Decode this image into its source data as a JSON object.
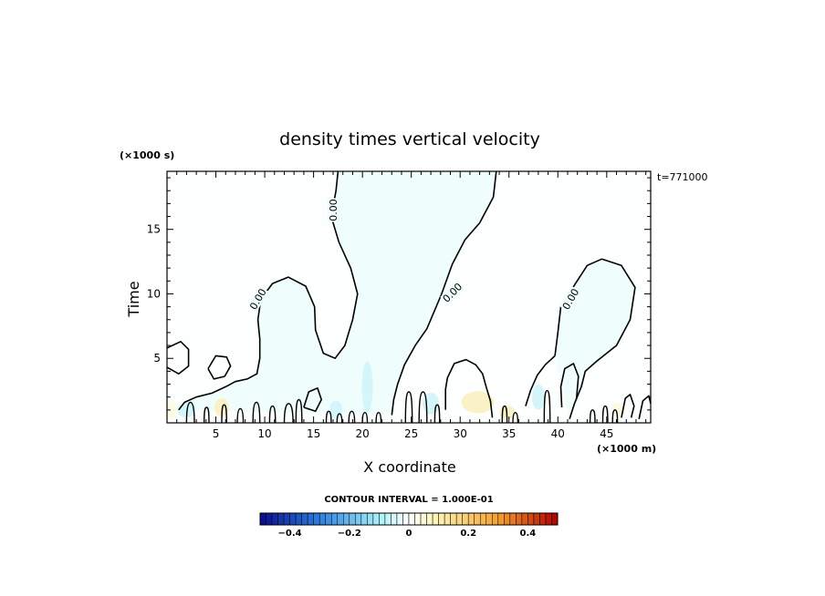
{
  "chart_data": {
    "type": "contour",
    "title": "density times vertical velocity",
    "xlabel": "X coordinate",
    "ylabel": "Time",
    "x_unit": "(×1000 m)",
    "y_unit": "(×1000 s)",
    "time_stamp": "t=771000",
    "xlim": [
      0,
      49.5
    ],
    "ylim": [
      0,
      19.5
    ],
    "x_ticks": [
      5,
      10,
      15,
      20,
      25,
      30,
      35,
      40,
      45
    ],
    "y_ticks": [
      5,
      10,
      15
    ],
    "x_tick_labels": [
      "5",
      "10",
      "15",
      "20",
      "25",
      "30",
      "35",
      "40",
      "45"
    ],
    "y_tick_labels": [
      "5",
      "10",
      "15"
    ],
    "contour_level_label": "0.00",
    "contour_interval_text": "CONTOUR INTERVAL = 1.000E-01",
    "colorbar": {
      "min": -0.5,
      "max": 0.5,
      "ticks": [
        -0.4,
        -0.2,
        0,
        0.2,
        0.4
      ],
      "tick_labels": [
        "−0.4",
        "−0.2",
        "0",
        "0.2",
        "0.4"
      ],
      "colors": {
        "deep_negative": "#0a0a8c",
        "mid_negative": "#2c7fe0",
        "light_negative": "#a8f0f8",
        "zero": "#ffffff",
        "light_positive": "#fbf3b0",
        "mid_positive": "#f5a030",
        "deep_positive": "#b00000"
      }
    },
    "field_colors": {
      "slightly_negative": "#f0fdfd",
      "negative_patch": "#d4f6fa",
      "slightly_positive": "#fdfbe6",
      "positive_patch": "#fbf1c6"
    },
    "zero_contours": [
      [
        [
          17.5,
          19.5
        ],
        [
          17.3,
          18
        ],
        [
          16.8,
          16
        ],
        [
          17.6,
          14
        ],
        [
          18.8,
          12
        ],
        [
          19.5,
          10
        ],
        [
          19.0,
          8
        ],
        [
          18.2,
          6
        ],
        [
          17.2,
          5
        ],
        [
          16.0,
          5.4
        ],
        [
          15.2,
          7.2
        ],
        [
          15.1,
          9
        ],
        [
          14.2,
          10.6
        ],
        [
          12.4,
          11.3
        ],
        [
          10.8,
          10.8
        ],
        [
          9.6,
          9.6
        ],
        [
          9.3,
          8
        ],
        [
          9.5,
          6.5
        ],
        [
          9.5,
          5
        ],
        [
          9.2,
          3.8
        ],
        [
          8.2,
          3.4
        ],
        [
          7.0,
          3.2
        ],
        [
          6.0,
          2.8
        ],
        [
          4.6,
          2.3
        ],
        [
          3.0,
          2.0
        ],
        [
          1.8,
          1.6
        ],
        [
          1.2,
          1.0
        ]
      ],
      [
        [
          33.7,
          19.5
        ],
        [
          33.4,
          17.5
        ],
        [
          32.0,
          15.5
        ],
        [
          30.5,
          14.2
        ],
        [
          29.2,
          12.3
        ],
        [
          28.1,
          10
        ],
        [
          26.6,
          7.3
        ],
        [
          25.4,
          6.0
        ],
        [
          24.3,
          4.5
        ],
        [
          23.6,
          3.0
        ],
        [
          23.2,
          1.8
        ],
        [
          23.0,
          0.6
        ]
      ],
      [
        [
          39.7,
          5.2
        ],
        [
          40.0,
          7
        ],
        [
          40.3,
          9
        ],
        [
          41.8,
          10.8
        ],
        [
          43.0,
          12.2
        ],
        [
          44.5,
          12.7
        ],
        [
          46.5,
          12.2
        ],
        [
          47.9,
          10.5
        ],
        [
          47.4,
          8
        ],
        [
          46.0,
          6
        ],
        [
          44.0,
          4.8
        ],
        [
          42.8,
          4.0
        ],
        [
          42.4,
          2.8
        ],
        [
          41.7,
          1.5
        ],
        [
          41.2,
          0.3
        ]
      ],
      [
        [
          39.7,
          5.2
        ],
        [
          38.7,
          4.5
        ],
        [
          37.9,
          3.7
        ],
        [
          37.2,
          2.5
        ],
        [
          36.7,
          1.3
        ]
      ],
      [
        [
          0.0,
          5.8
        ],
        [
          1.4,
          6.3
        ],
        [
          2.2,
          5.7
        ],
        [
          2.2,
          4.4
        ],
        [
          1.2,
          3.8
        ],
        [
          0.0,
          4.3
        ]
      ],
      [
        [
          4.2,
          4.2
        ],
        [
          5.0,
          5.2
        ],
        [
          6.1,
          5.1
        ],
        [
          6.5,
          4.4
        ],
        [
          5.9,
          3.6
        ],
        [
          4.8,
          3.4
        ],
        [
          4.2,
          4.2
        ]
      ],
      [
        [
          14.0,
          1.2
        ],
        [
          14.5,
          2.4
        ],
        [
          15.4,
          2.7
        ],
        [
          15.8,
          1.8
        ],
        [
          15.2,
          0.9
        ],
        [
          14.0,
          1.2
        ]
      ],
      [
        [
          28.5,
          1.0
        ],
        [
          28.5,
          2.6
        ],
        [
          28.7,
          3.5
        ],
        [
          29.4,
          4.6
        ],
        [
          30.6,
          4.9
        ],
        [
          31.6,
          4.5
        ],
        [
          32.3,
          3.8
        ],
        [
          32.7,
          2.7
        ],
        [
          33.1,
          1.7
        ],
        [
          33.3,
          0.4
        ]
      ],
      [
        [
          40.4,
          1.2
        ],
        [
          40.3,
          2.8
        ],
        [
          40.7,
          4.2
        ],
        [
          41.6,
          4.6
        ],
        [
          42.1,
          3.6
        ],
        [
          41.9,
          1.8
        ]
      ],
      [
        [
          46.5,
          0.4
        ],
        [
          46.9,
          1.9
        ],
        [
          47.4,
          2.2
        ],
        [
          47.8,
          1.3
        ],
        [
          47.5,
          0.4
        ]
      ],
      [
        [
          48.3,
          0.3
        ],
        [
          48.7,
          1.7
        ],
        [
          49.3,
          2.1
        ],
        [
          49.5,
          1.5
        ]
      ]
    ],
    "near_surface_cells": [
      {
        "x": 2.0,
        "w": 0.8,
        "h": 1.6
      },
      {
        "x": 3.8,
        "w": 0.5,
        "h": 1.2
      },
      {
        "x": 5.6,
        "w": 0.5,
        "h": 1.4
      },
      {
        "x": 7.2,
        "w": 0.6,
        "h": 1.1
      },
      {
        "x": 8.8,
        "w": 0.7,
        "h": 1.6
      },
      {
        "x": 10.5,
        "w": 0.6,
        "h": 1.3
      },
      {
        "x": 12.0,
        "w": 0.9,
        "h": 1.5
      },
      {
        "x": 13.2,
        "w": 0.6,
        "h": 1.8
      },
      {
        "x": 16.3,
        "w": 0.5,
        "h": 0.9
      },
      {
        "x": 17.4,
        "w": 0.5,
        "h": 0.7
      },
      {
        "x": 18.6,
        "w": 0.6,
        "h": 0.9
      },
      {
        "x": 20.0,
        "w": 0.5,
        "h": 0.8
      },
      {
        "x": 21.4,
        "w": 0.5,
        "h": 0.8
      },
      {
        "x": 24.4,
        "w": 0.7,
        "h": 2.4
      },
      {
        "x": 25.8,
        "w": 0.8,
        "h": 2.4
      },
      {
        "x": 27.4,
        "w": 0.5,
        "h": 1.4
      },
      {
        "x": 34.3,
        "w": 0.5,
        "h": 1.3
      },
      {
        "x": 35.4,
        "w": 0.5,
        "h": 0.8
      },
      {
        "x": 38.6,
        "w": 0.6,
        "h": 2.5
      },
      {
        "x": 43.3,
        "w": 0.5,
        "h": 1.0
      },
      {
        "x": 44.6,
        "w": 0.5,
        "h": 1.3
      },
      {
        "x": 45.6,
        "w": 0.5,
        "h": 1.0
      }
    ],
    "contour_label_positions": [
      {
        "x": 17.0,
        "y": 16.5,
        "angle": -90
      },
      {
        "x": 9.3,
        "y": 9.6,
        "angle": -60
      },
      {
        "x": 29.2,
        "y": 10.1,
        "angle": -45
      },
      {
        "x": 41.3,
        "y": 9.6,
        "angle": -60
      }
    ]
  }
}
